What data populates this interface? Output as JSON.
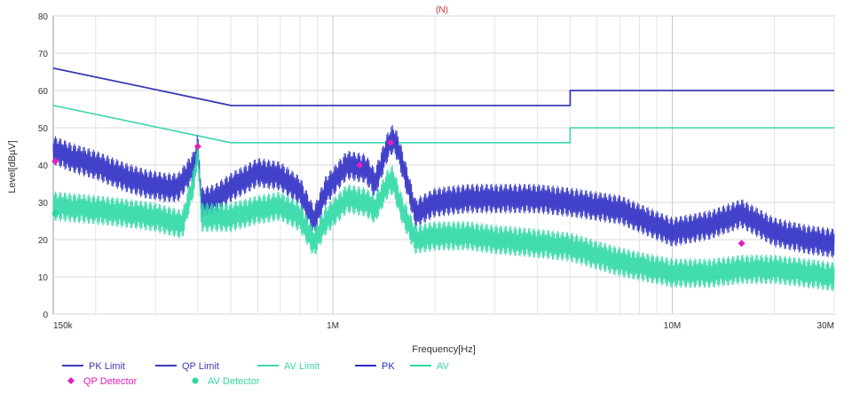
{
  "chart_data": {
    "type": "line",
    "title": "(N)",
    "xlabel": "Frequency[Hz]",
    "ylabel": "Level[dBµV]",
    "x_scale": "log",
    "xlim": [
      150000,
      30000000
    ],
    "ylim": [
      0,
      80
    ],
    "x_ticks": [
      {
        "value": 150000,
        "label": "150k"
      },
      {
        "value": 1000000,
        "label": "1M"
      },
      {
        "value": 10000000,
        "label": "10M"
      },
      {
        "value": 30000000,
        "label": "30M"
      }
    ],
    "y_ticks": [
      0,
      10,
      20,
      30,
      40,
      50,
      60,
      70,
      80
    ],
    "grid": true,
    "legend_position": "bottom-left",
    "colors": {
      "pk_limit": "#3b3bb8",
      "qp_limit": "#3b3bb8",
      "av_limit": "#3fd6b0",
      "pk": "#2c2cc4",
      "av": "#2ed8a6",
      "qp_detector": "#e020c0",
      "av_detector": "#30d6a0",
      "title": "#d03030"
    },
    "series": [
      {
        "name": "PK Limit",
        "color": "#3b3bb8",
        "points": [
          [
            150000,
            66
          ],
          [
            500000,
            56
          ],
          [
            5000000,
            56
          ],
          [
            5000000,
            60
          ],
          [
            30000000,
            60
          ]
        ]
      },
      {
        "name": "QP Limit",
        "color": "#3b3bb8",
        "points": [
          [
            150000,
            66
          ],
          [
            500000,
            56
          ],
          [
            5000000,
            56
          ],
          [
            5000000,
            60
          ],
          [
            30000000,
            60
          ]
        ]
      },
      {
        "name": "AV Limit",
        "color": "#3fd6b0",
        "points": [
          [
            150000,
            56
          ],
          [
            500000,
            46
          ],
          [
            5000000,
            46
          ],
          [
            5000000,
            50
          ],
          [
            30000000,
            50
          ]
        ]
      },
      {
        "name": "PK",
        "color": "#2c2cc4",
        "points": [
          [
            150000,
            44
          ],
          [
            170000,
            42
          ],
          [
            200000,
            40
          ],
          [
            240000,
            37
          ],
          [
            280000,
            35
          ],
          [
            320000,
            34
          ],
          [
            350000,
            34
          ],
          [
            390000,
            40
          ],
          [
            400000,
            45
          ],
          [
            410000,
            30
          ],
          [
            450000,
            31
          ],
          [
            500000,
            34
          ],
          [
            600000,
            38
          ],
          [
            700000,
            37
          ],
          [
            800000,
            33
          ],
          [
            880000,
            25
          ],
          [
            950000,
            33
          ],
          [
            1100000,
            40
          ],
          [
            1250000,
            39
          ],
          [
            1330000,
            35
          ],
          [
            1450000,
            45
          ],
          [
            1500000,
            47
          ],
          [
            1550000,
            45
          ],
          [
            1650000,
            36
          ],
          [
            1750000,
            27
          ],
          [
            2000000,
            30
          ],
          [
            2500000,
            31
          ],
          [
            3000000,
            31
          ],
          [
            4000000,
            31
          ],
          [
            5000000,
            30
          ],
          [
            7000000,
            28
          ],
          [
            10000000,
            22
          ],
          [
            13000000,
            24
          ],
          [
            16000000,
            27
          ],
          [
            20000000,
            22
          ],
          [
            25000000,
            20
          ],
          [
            30000000,
            19
          ]
        ],
        "ripple": 4
      },
      {
        "name": "AV",
        "color": "#2ed8a6",
        "points": [
          [
            150000,
            29
          ],
          [
            200000,
            28
          ],
          [
            250000,
            27
          ],
          [
            300000,
            26
          ],
          [
            360000,
            24
          ],
          [
            390000,
            36
          ],
          [
            400000,
            44
          ],
          [
            410000,
            26
          ],
          [
            500000,
            26
          ],
          [
            600000,
            28
          ],
          [
            700000,
            29
          ],
          [
            800000,
            26
          ],
          [
            880000,
            19
          ],
          [
            950000,
            25
          ],
          [
            1100000,
            31
          ],
          [
            1250000,
            30
          ],
          [
            1330000,
            28
          ],
          [
            1450000,
            35
          ],
          [
            1500000,
            36
          ],
          [
            1600000,
            28
          ],
          [
            1750000,
            20
          ],
          [
            2000000,
            21
          ],
          [
            2500000,
            21
          ],
          [
            3000000,
            20
          ],
          [
            4000000,
            19
          ],
          [
            5000000,
            18
          ],
          [
            7000000,
            14
          ],
          [
            10000000,
            11
          ],
          [
            13000000,
            11
          ],
          [
            16000000,
            12
          ],
          [
            20000000,
            12
          ],
          [
            25000000,
            11
          ],
          [
            30000000,
            10
          ]
        ],
        "ripple": 4
      },
      {
        "name": "QP Detector",
        "color": "#e020c0",
        "marker": "diamond",
        "points": [
          [
            152000,
            41
          ],
          [
            400000,
            45
          ],
          [
            1200000,
            40
          ],
          [
            1480000,
            46
          ],
          [
            16000000,
            19
          ]
        ]
      },
      {
        "name": "AV Detector",
        "color": "#30d6a0",
        "marker": "circle",
        "points": [
          [
            152000,
            27
          ]
        ]
      }
    ]
  }
}
